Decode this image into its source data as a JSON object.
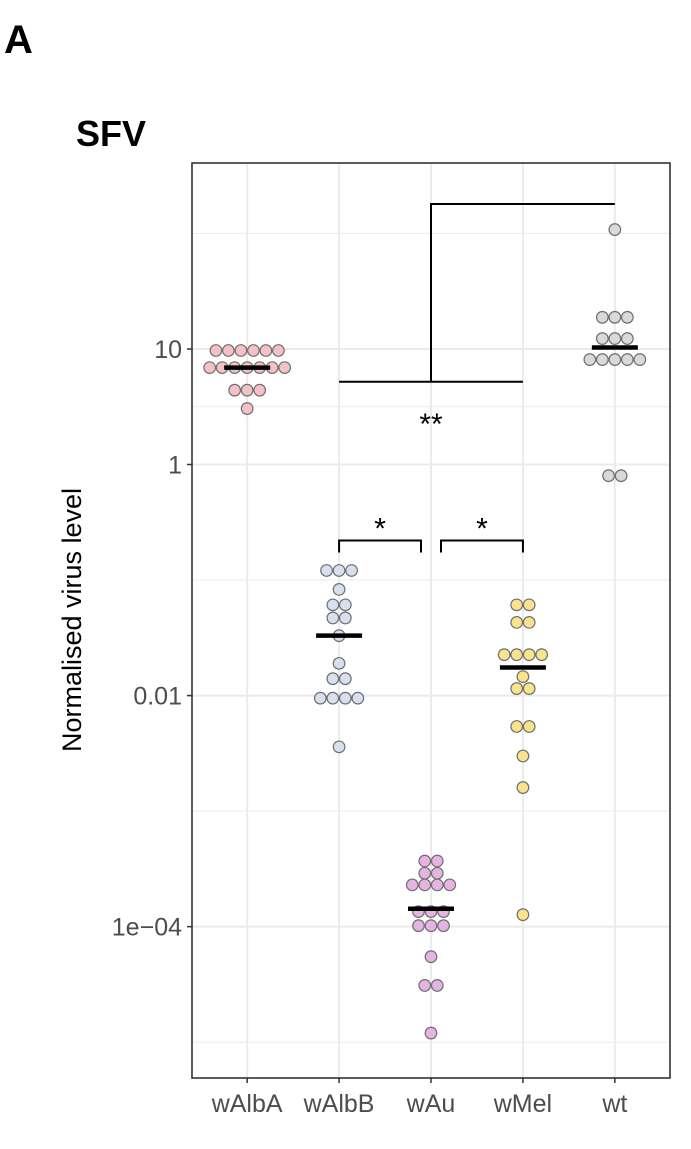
{
  "panel_label": "A",
  "chart_data": {
    "type": "scatter",
    "title": "SFV",
    "xlabel": "",
    "ylabel": "Normalised virus level",
    "yscale": "log10",
    "ylim": [
      4.9e-06,
      407
    ],
    "yticks": [
      {
        "value": 10,
        "label": "10"
      },
      {
        "value": 1,
        "label": "1"
      },
      {
        "value": 0.01,
        "label": "0.01"
      },
      {
        "value": 0.0001,
        "label": "1e−04"
      }
    ],
    "yminor": [
      100,
      3.162,
      0.1,
      0.001,
      1e-05
    ],
    "grid": true,
    "categories": [
      "wAlbA",
      "wAlbB",
      "wAu",
      "wMel",
      "wt"
    ],
    "series": [
      {
        "name": "wAlbA",
        "color": "#f4c2c6",
        "median": 6.9,
        "values": [
          9.7,
          9.7,
          9.7,
          9.7,
          9.7,
          9.7,
          6.9,
          6.9,
          6.9,
          6.9,
          6.9,
          6.9,
          6.9,
          4.4,
          4.4,
          4.4,
          3.05
        ]
      },
      {
        "name": "wAlbB",
        "color": "#d7e0ec",
        "median": 0.033,
        "values": [
          0.121,
          0.121,
          0.121,
          0.083,
          0.061,
          0.061,
          0.047,
          0.047,
          0.033,
          0.019,
          0.014,
          0.014,
          0.0095,
          0.0095,
          0.0095,
          0.0095,
          0.0036
        ]
      },
      {
        "name": "wAu",
        "color": "#e6b4e3",
        "median": 0.000143,
        "values": [
          0.00037,
          0.00037,
          0.00029,
          0.00029,
          0.00023,
          0.00023,
          0.00023,
          0.00023,
          0.000135,
          0.000135,
          0.000135,
          0.000102,
          0.000102,
          0.000102,
          5.5e-05,
          3.1e-05,
          3.1e-05,
          1.2e-05
        ]
      },
      {
        "name": "wMel",
        "color": "#f9e38c",
        "median": 0.0175,
        "values": [
          0.061,
          0.061,
          0.043,
          0.043,
          0.0226,
          0.0226,
          0.0226,
          0.0226,
          0.0146,
          0.0115,
          0.0115,
          0.0054,
          0.0054,
          0.003,
          0.0016,
          0.000127
        ]
      },
      {
        "name": "wt",
        "color": "#d9d9d9",
        "median": 10.3,
        "values": [
          108,
          18.8,
          18.8,
          18.8,
          12.3,
          12.3,
          12.3,
          8.1,
          8.1,
          8.1,
          8.1,
          8.1,
          0.8,
          0.8
        ]
      }
    ],
    "annotations": [
      {
        "type": "bracket",
        "from": "wAlbB",
        "to": "wAu",
        "label": "*",
        "y": 0.22
      },
      {
        "type": "bracket",
        "from": "wAu",
        "to": "wMel",
        "label": "*",
        "y": 0.22
      },
      {
        "type": "step-bracket",
        "from_range": [
          "wAlbB",
          "wMel"
        ],
        "to": "wt",
        "label": "**",
        "y_low": 5.2,
        "y_high": 180
      }
    ]
  }
}
